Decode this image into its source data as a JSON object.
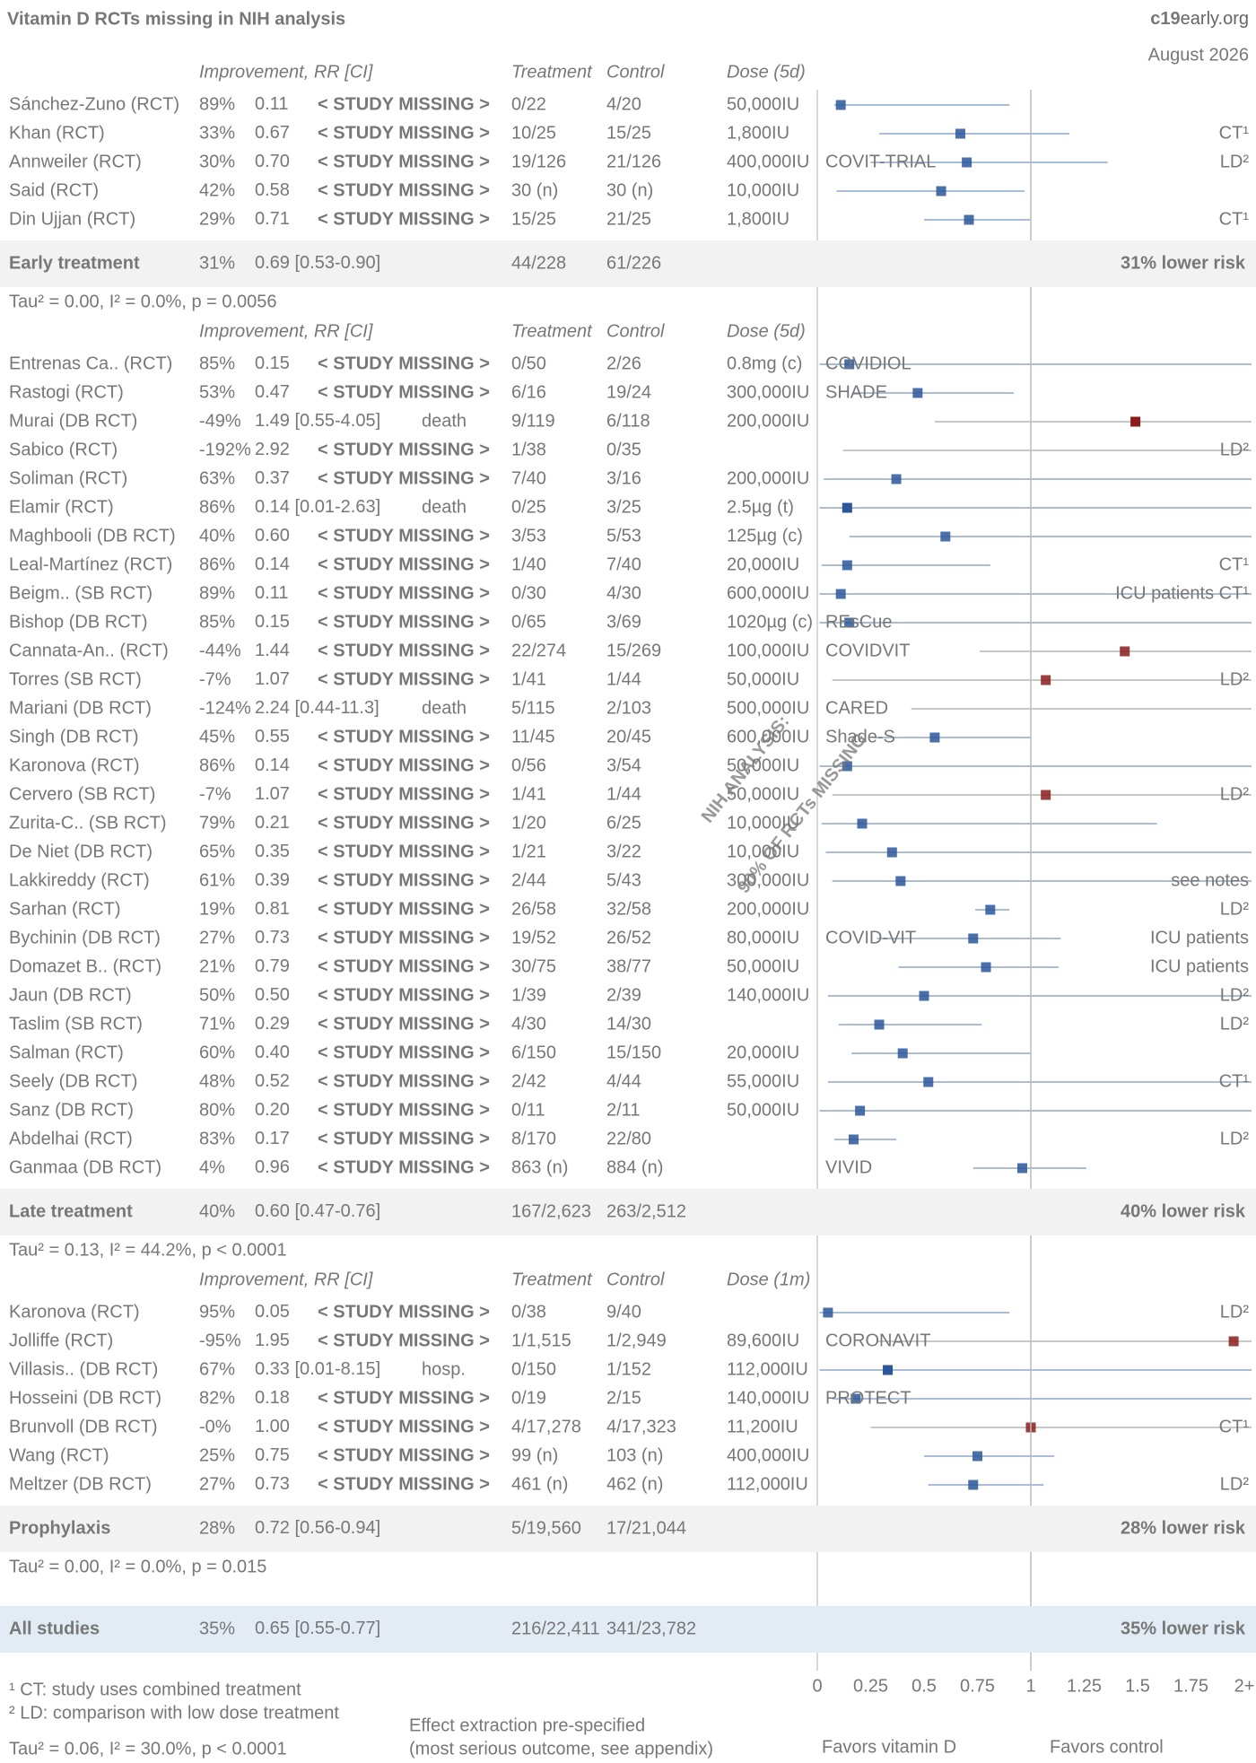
{
  "header": {
    "title": "Vitamin D RCTs missing in NIH analysis",
    "brand_bold": "c19",
    "brand_rest": "early.org",
    "date": "August 2026"
  },
  "overlay": [
    "NIH ANALYSIS:",
    "90% OF RCTs MISSING"
  ],
  "missing_label": "< STUDY MISSING >",
  "chart_data": {
    "type": "forest",
    "xlim": [
      0,
      2
    ],
    "xticks": [
      0,
      0.25,
      0.5,
      0.75,
      1,
      1.25,
      1.5,
      1.75,
      {
        "value": 2,
        "label": "2+"
      }
    ],
    "colors": {
      "favor": "#2b579a",
      "against": "#8b1c1c",
      "diamond": "#4a7fbf",
      "missing": "#e04848"
    },
    "sections": [
      {
        "columns": [
          "Improvement, RR [CI]",
          "Treatment",
          "Control",
          "Dose (5d)"
        ],
        "studies": [
          {
            "name": "Sánchez-Zuno (RCT)",
            "improvement": "89%",
            "rr_label": "0.11",
            "rr": 0.11,
            "ci": [
              0.08,
              0.9
            ],
            "treatment": "0/22",
            "control": "4/20",
            "dose": "50,000IU",
            "missing": true
          },
          {
            "name": "Khan (RCT)",
            "improvement": "33%",
            "rr_label": "0.67",
            "rr": 0.67,
            "ci": [
              0.29,
              1.18
            ],
            "treatment": "10/25",
            "control": "15/25",
            "dose": "1,800IU",
            "note": "CT¹",
            "missing": true
          },
          {
            "name": "Annweiler (RCT)",
            "improvement": "30%",
            "rr_label": "0.70",
            "rr": 0.7,
            "ci": [
              0.25,
              1.36
            ],
            "treatment": "19/126",
            "control": "21/126",
            "dose": "400,000IU",
            "trial": "COVIT-TRIAL",
            "note": "LD²",
            "missing": true
          },
          {
            "name": "Said (RCT)",
            "improvement": "42%",
            "rr_label": "0.58",
            "rr": 0.58,
            "ci": [
              0.09,
              0.97
            ],
            "treatment": "30 (n)",
            "control": "30 (n)",
            "dose": "10,000IU",
            "missing": true
          },
          {
            "name": "Din Ujjan (RCT)",
            "improvement": "29%",
            "rr_label": "0.71",
            "rr": 0.71,
            "ci": [
              0.5,
              1.0
            ],
            "treatment": "15/25",
            "control": "21/25",
            "dose": "1,800IU",
            "note": "CT¹",
            "missing": true
          }
        ],
        "summary": {
          "name": "Early treatment",
          "improvement": "31%",
          "rr_label": "0.69",
          "ci_text": "[0.53-0.90]",
          "rr": 0.69,
          "ci": [
            0.53,
            0.9
          ],
          "treatment": "44/228",
          "control": "61/226",
          "result": "31% lower risk"
        },
        "stats": "Tau² = 0.00, I² = 0.0%, p = 0.0056"
      },
      {
        "columns": [
          "Improvement, RR [CI]",
          "Treatment",
          "Control",
          "Dose (5d)"
        ],
        "studies": [
          {
            "name": "Entrenas Ca.. (RCT)",
            "improvement": "85%",
            "rr_label": "0.15",
            "rr": 0.15,
            "ci": [
              0.01,
              3
            ],
            "treatment": "0/50",
            "control": "2/26",
            "dose": "0.8mg (c)",
            "trial": "COVIDIOL",
            "missing": true
          },
          {
            "name": "Rastogi (RCT)",
            "improvement": "53%",
            "rr_label": "0.47",
            "rr": 0.47,
            "ci": [
              0.17,
              0.92
            ],
            "treatment": "6/16",
            "control": "19/24",
            "dose": "300,000IU",
            "trial": "SHADE",
            "missing": true
          },
          {
            "name": "Murai (DB RCT)",
            "improvement": "-49%",
            "rr_label": "1.49",
            "ci_text": "[0.55-4.05]",
            "outcome": "death",
            "rr": 1.49,
            "ci": [
              0.55,
              4.05
            ],
            "treatment": "9/119",
            "control": "6/118",
            "dose": "200,000IU",
            "missing": false
          },
          {
            "name": "Sabico (RCT)",
            "improvement": "-192%",
            "rr_label": "2.92",
            "rr": 2.92,
            "ci": [
              0.12,
              70
            ],
            "treatment": "1/38",
            "control": "0/35",
            "note": "LD²",
            "missing": true
          },
          {
            "name": "Soliman (RCT)",
            "improvement": "63%",
            "rr_label": "0.37",
            "rr": 0.37,
            "ci": [
              0.03,
              4
            ],
            "treatment": "7/40",
            "control": "3/16",
            "dose": "200,000IU",
            "missing": true
          },
          {
            "name": "Elamir (RCT)",
            "improvement": "86%",
            "rr_label": "0.14",
            "ci_text": "[0.01-2.63]",
            "outcome": "death",
            "rr": 0.14,
            "ci": [
              0.01,
              2.63
            ],
            "treatment": "0/25",
            "control": "3/25",
            "dose": "2.5µg (t)",
            "missing": false
          },
          {
            "name": "Maghbooli (DB RCT)",
            "improvement": "40%",
            "rr_label": "0.60",
            "rr": 0.6,
            "ci": [
              0.15,
              2.4
            ],
            "treatment": "3/53",
            "control": "5/53",
            "dose": "125µg (c)",
            "missing": true
          },
          {
            "name": "Leal-Martínez (RCT)",
            "improvement": "86%",
            "rr_label": "0.14",
            "rr": 0.14,
            "ci": [
              0.02,
              0.81
            ],
            "treatment": "1/40",
            "control": "7/40",
            "dose": "20,000IU",
            "note": "CT¹",
            "missing": true
          },
          {
            "name": "Beigm.. (SB RCT)",
            "improvement": "89%",
            "rr_label": "0.11",
            "rr": 0.11,
            "ci": [
              0.01,
              2.1
            ],
            "treatment": "0/30",
            "control": "4/30",
            "dose": "600,000IU",
            "note": "ICU patients CT¹",
            "missing": true
          },
          {
            "name": "Bishop (DB RCT)",
            "improvement": "85%",
            "rr_label": "0.15",
            "rr": 0.15,
            "ci": [
              0.01,
              2.9
            ],
            "treatment": "0/65",
            "control": "3/69",
            "dose": "1020µg (c)",
            "trial": "REsCue",
            "missing": true
          },
          {
            "name": "Cannata-An.. (RCT)",
            "improvement": "-44%",
            "rr_label": "1.44",
            "rr": 1.44,
            "ci": [
              0.76,
              2.7
            ],
            "treatment": "22/274",
            "control": "15/269",
            "dose": "100,000IU",
            "trial": "COVIDVIT",
            "missing": true
          },
          {
            "name": "Torres (SB RCT)",
            "improvement": "-7%",
            "rr_label": "1.07",
            "rr": 1.07,
            "ci": [
              0.07,
              16
            ],
            "treatment": "1/41",
            "control": "1/44",
            "dose": "50,000IU",
            "note": "LD²",
            "missing": true
          },
          {
            "name": "Mariani (DB RCT)",
            "improvement": "-124%",
            "rr_label": "2.24",
            "ci_text": "[0.44-11.3]",
            "outcome": "death",
            "rr": 2.24,
            "ci": [
              0.44,
              11.3
            ],
            "treatment": "5/115",
            "control": "2/103",
            "dose": "500,000IU",
            "trial": "CARED",
            "missing": false
          },
          {
            "name": "Singh (DB RCT)",
            "improvement": "45%",
            "rr_label": "0.55",
            "rr": 0.55,
            "ci": [
              0.26,
              1.0
            ],
            "treatment": "11/45",
            "control": "20/45",
            "dose": "600,000IU",
            "trial": "Shade-S",
            "missing": true
          },
          {
            "name": "Karonova (RCT)",
            "improvement": "86%",
            "rr_label": "0.14",
            "rr": 0.14,
            "ci": [
              0.01,
              2.6
            ],
            "treatment": "0/56",
            "control": "3/54",
            "dose": "50,000IU",
            "missing": true
          },
          {
            "name": "Cervero (SB RCT)",
            "improvement": "-7%",
            "rr_label": "1.07",
            "rr": 1.07,
            "ci": [
              0.07,
              16
            ],
            "treatment": "1/41",
            "control": "1/44",
            "dose": "50,000IU",
            "note": "LD²",
            "missing": true
          },
          {
            "name": "Zurita-C.. (SB RCT)",
            "improvement": "79%",
            "rr_label": "0.21",
            "rr": 0.21,
            "ci": [
              0.02,
              1.59
            ],
            "treatment": "1/20",
            "control": "6/25",
            "dose": "10,000IU",
            "missing": true
          },
          {
            "name": "De Niet (DB RCT)",
            "improvement": "65%",
            "rr_label": "0.35",
            "rr": 0.35,
            "ci": [
              0.04,
              3
            ],
            "treatment": "1/21",
            "control": "3/22",
            "dose": "10,000IU",
            "missing": true
          },
          {
            "name": "Lakkireddy (RCT)",
            "improvement": "61%",
            "rr_label": "0.39",
            "rr": 0.39,
            "ci": [
              0.07,
              2.1
            ],
            "treatment": "2/44",
            "control": "5/43",
            "dose": "300,000IU",
            "note": "see notes",
            "missing": true
          },
          {
            "name": "Sarhan (RCT)",
            "improvement": "19%",
            "rr_label": "0.81",
            "rr": 0.81,
            "ci": [
              0.74,
              0.9
            ],
            "treatment": "26/58",
            "control": "32/58",
            "dose": "200,000IU",
            "note": "LD²",
            "missing": true
          },
          {
            "name": "Bychinin (DB RCT)",
            "improvement": "27%",
            "rr_label": "0.73",
            "rr": 0.73,
            "ci": [
              0.28,
              1.14
            ],
            "treatment": "19/52",
            "control": "26/52",
            "dose": "80,000IU",
            "trial": "COVID-VIT",
            "note": "ICU patients",
            "missing": true
          },
          {
            "name": "Domazet B.. (RCT)",
            "improvement": "21%",
            "rr_label": "0.79",
            "rr": 0.79,
            "ci": [
              0.38,
              1.13
            ],
            "treatment": "30/75",
            "control": "38/77",
            "dose": "50,000IU",
            "note": "ICU patients",
            "missing": true
          },
          {
            "name": "Jaun (DB RCT)",
            "improvement": "50%",
            "rr_label": "0.50",
            "rr": 0.5,
            "ci": [
              0.05,
              5
            ],
            "treatment": "1/39",
            "control": "2/39",
            "dose": "140,000IU",
            "note": "LD²",
            "missing": true
          },
          {
            "name": "Taslim (SB RCT)",
            "improvement": "71%",
            "rr_label": "0.29",
            "rr": 0.29,
            "ci": [
              0.1,
              0.77
            ],
            "treatment": "4/30",
            "control": "14/30",
            "note": "LD²",
            "missing": true
          },
          {
            "name": "Salman (RCT)",
            "improvement": "60%",
            "rr_label": "0.40",
            "rr": 0.4,
            "ci": [
              0.16,
              1.0
            ],
            "treatment": "6/150",
            "control": "15/150",
            "dose": "20,000IU",
            "missing": true
          },
          {
            "name": "Seely (DB RCT)",
            "improvement": "48%",
            "rr_label": "0.52",
            "rr": 0.52,
            "ci": [
              0.05,
              5
            ],
            "treatment": "2/42",
            "control": "4/44",
            "dose": "55,000IU",
            "note": "CT¹",
            "missing": true
          },
          {
            "name": "Sanz (DB RCT)",
            "improvement": "80%",
            "rr_label": "0.20",
            "rr": 0.2,
            "ci": [
              0.01,
              3.8
            ],
            "treatment": "0/11",
            "control": "2/11",
            "dose": "50,000IU",
            "missing": true
          },
          {
            "name": "Abdelhai (RCT)",
            "improvement": "83%",
            "rr_label": "0.17",
            "rr": 0.17,
            "ci": [
              0.08,
              0.37
            ],
            "treatment": "8/170",
            "control": "22/80",
            "note": "LD²",
            "missing": true
          },
          {
            "name": "Ganmaa (DB RCT)",
            "improvement": "4%",
            "rr_label": "0.96",
            "rr": 0.96,
            "ci": [
              0.73,
              1.26
            ],
            "treatment": "863 (n)",
            "control": "884 (n)",
            "trial": "VIVID",
            "missing": true
          }
        ],
        "summary": {
          "name": "Late treatment",
          "improvement": "40%",
          "rr_label": "0.60",
          "ci_text": "[0.47-0.76]",
          "rr": 0.6,
          "ci": [
            0.47,
            0.76
          ],
          "treatment": "167/2,623",
          "control": "263/2,512",
          "result": "40% lower risk"
        },
        "stats": "Tau² = 0.13, I² = 44.2%, p < 0.0001"
      },
      {
        "columns": [
          "Improvement, RR [CI]",
          "Treatment",
          "Control",
          "Dose (1m)"
        ],
        "studies": [
          {
            "name": "Karonova (RCT)",
            "improvement": "95%",
            "rr_label": "0.05",
            "rr": 0.05,
            "ci": [
              0.01,
              0.9
            ],
            "treatment": "0/38",
            "control": "9/40",
            "note": "LD²",
            "missing": true
          },
          {
            "name": "Jolliffe (RCT)",
            "improvement": "-95%",
            "rr_label": "1.95",
            "rr": 1.95,
            "ci": [
              0.28,
              30
            ],
            "treatment": "1/1,515",
            "control": "1/2,949",
            "dose": "89,600IU",
            "trial": "CORONAVIT",
            "missing": true
          },
          {
            "name": "Villasis.. (DB RCT)",
            "improvement": "67%",
            "rr_label": "0.33",
            "ci_text": "[0.01-8.15]",
            "outcome": "hosp.",
            "rr": 0.33,
            "ci": [
              0.01,
              8.15
            ],
            "treatment": "0/150",
            "control": "1/152",
            "dose": "112,000IU",
            "missing": false
          },
          {
            "name": "Hosseini (DB RCT)",
            "improvement": "82%",
            "rr_label": "0.18",
            "rr": 0.18,
            "ci": [
              0.07,
              3.5
            ],
            "treatment": "0/19",
            "control": "2/15",
            "dose": "140,000IU",
            "trial": "PROTECT",
            "missing": true
          },
          {
            "name": "Brunvoll (DB RCT)",
            "improvement": "-0%",
            "rr_label": "1.00",
            "rr": 1.0,
            "ci": [
              0.25,
              4
            ],
            "treatment": "4/17,278",
            "control": "4/17,323",
            "dose": "11,200IU",
            "note": "CT¹",
            "missing": true
          },
          {
            "name": "Wang (RCT)",
            "improvement": "25%",
            "rr_label": "0.75",
            "rr": 0.75,
            "ci": [
              0.5,
              1.11
            ],
            "treatment": "99 (n)",
            "control": "103 (n)",
            "dose": "400,000IU",
            "missing": true
          },
          {
            "name": "Meltzer (DB RCT)",
            "improvement": "27%",
            "rr_label": "0.73",
            "rr": 0.73,
            "ci": [
              0.52,
              1.06
            ],
            "treatment": "461 (n)",
            "control": "462 (n)",
            "dose": "112,000IU",
            "note": "LD²",
            "missing": true
          }
        ],
        "summary": {
          "name": "Prophylaxis",
          "improvement": "28%",
          "rr_label": "0.72",
          "ci_text": "[0.56-0.94]",
          "rr": 0.72,
          "ci": [
            0.56,
            0.94
          ],
          "treatment": "5/19,560",
          "control": "17/21,044",
          "result": "28% lower risk"
        },
        "stats": "Tau² = 0.00, I² = 0.0%, p = 0.015"
      }
    ],
    "overall": {
      "name": "All studies",
      "improvement": "35%",
      "rr_label": "0.65",
      "ci_text": "[0.55-0.77]",
      "rr": 0.65,
      "ci": [
        0.55,
        0.77
      ],
      "treatment": "216/22,411",
      "control": "341/23,782",
      "result": "35% lower risk"
    },
    "footnotes": [
      "¹ CT: study uses combined treatment",
      "² LD: comparison with low dose treatment"
    ],
    "pooled_stats": "Tau² = 0.06, I² = 30.0%, p < 0.0001",
    "method_note": [
      "Effect extraction pre-specified",
      "(most serious outcome, see appendix)"
    ],
    "favors": [
      "Favors vitamin D",
      "Favors control"
    ]
  }
}
